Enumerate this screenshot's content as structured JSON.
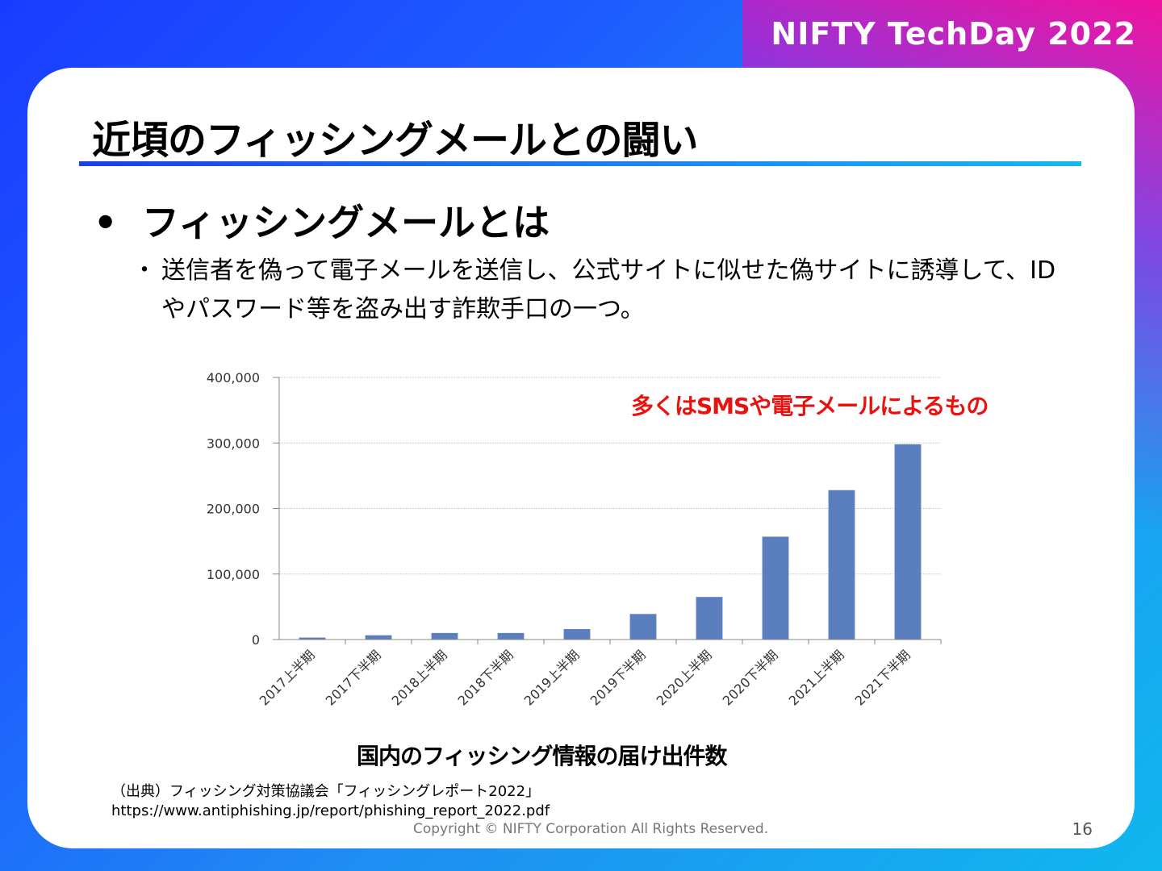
{
  "brand": "NIFTY TechDay 2022",
  "slide": {
    "title": "近頃のフィッシングメールとの闘い",
    "bullet_main": "フィッシングメールとは",
    "bullet_sub": "送信者を偽って電子メールを送信し、公式サイトに似せた偽サイトに誘導して、IDやパスワード等を盗み出す詐欺手口の一つ。",
    "annotation": "多くはSMSや電子メールによるもの",
    "chart_caption": "国内のフィッシング情報の届け出件数",
    "source_line1": "（出典）フィッシング対策協議会「フィッシングレポート2022」",
    "source_line2": "https://www.antiphishing.jp/report/phishing_report_2022.pdf",
    "copyright": "Copyright © NIFTY Corporation All Rights Reserved.",
    "page_number": "16"
  },
  "chart_data": {
    "type": "bar",
    "categories": [
      "2017上半期",
      "2017下半期",
      "2018上半期",
      "2018下半期",
      "2019上半期",
      "2019下半期",
      "2020上半期",
      "2020下半期",
      "2021上半期",
      "2021下半期"
    ],
    "values": [
      3000,
      6500,
      10000,
      10000,
      16000,
      39000,
      65000,
      157000,
      228000,
      298000
    ],
    "y_ticks": [
      "0",
      "100,000",
      "200,000",
      "300,000",
      "400,000"
    ],
    "ylim": [
      0,
      400000
    ],
    "grid": true,
    "bar_color": "#5b7fbe"
  }
}
